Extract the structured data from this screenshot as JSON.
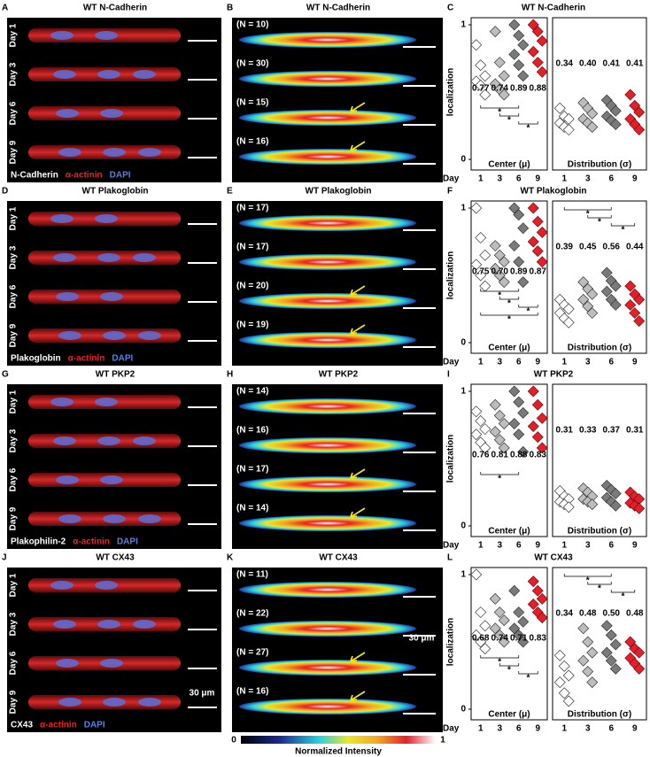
{
  "common": {
    "day_word": "Day",
    "days": [
      "1",
      "3",
      "6",
      "9"
    ],
    "ylabel": "localization",
    "yticks": [
      0,
      1
    ],
    "ylim": [
      0,
      1
    ],
    "center_label": "Center (μ)",
    "distribution_label": "Distribution (σ)",
    "day_colors": [
      "#ffffff",
      "#bdbdbd",
      "#7a7a7a",
      "#e0202a"
    ],
    "colorbar": {
      "min": "0",
      "max": "1",
      "label": "Normalized Intensity"
    }
  },
  "panels": [
    {
      "image": {
        "letter": "A",
        "title": "WT N-Cadherin",
        "days": [
          "Day 1",
          "Day 3",
          "Day 6",
          "Day 9"
        ],
        "stains": [
          "N-Cadherin",
          "α-actinin",
          "DAPI"
        ]
      },
      "heatmap": {
        "letter": "B",
        "title": "WT N-Cadherin",
        "counts": [
          "(N = 10)",
          "(N = 30)",
          "(N = 15)",
          "(N = 16)"
        ]
      },
      "plot": {
        "letter": "C",
        "title": "WT N-Cadherin",
        "center_labels": [
          "0.77",
          "0.74",
          "0.89",
          "0.88"
        ],
        "distribution_labels": [
          "0.34",
          "0.40",
          "0.41",
          "0.41"
        ],
        "center_points": [
          [
            0.85,
            0.7,
            0.62,
            0.58,
            0.55,
            0.48
          ],
          [
            0.95,
            0.72,
            0.62,
            0.56,
            0.52,
            0.48
          ],
          [
            1,
            0.92,
            0.85,
            0.78,
            0.7,
            0.62
          ],
          [
            1,
            0.95,
            0.88,
            0.8,
            0.72,
            0.65
          ]
        ],
        "distribution_points": [
          [
            0.38,
            0.32,
            0.3,
            0.27,
            0.24,
            0.22
          ],
          [
            0.42,
            0.38,
            0.34,
            0.3,
            0.27,
            0.24
          ],
          [
            0.44,
            0.4,
            0.36,
            0.32,
            0.29,
            0.26
          ],
          [
            0.48,
            0.4,
            0.35,
            0.3,
            0.26,
            0.22
          ]
        ],
        "center_stars": [
          "*",
          "*",
          "*"
        ],
        "distribution_stars": []
      }
    },
    {
      "image": {
        "letter": "D",
        "title": "WT Plakoglobin",
        "days": [
          "Day 1",
          "Day 3",
          "Day 6",
          "Day 9"
        ],
        "stains": [
          "Plakoglobin",
          "α-actinin",
          "DAPI"
        ]
      },
      "heatmap": {
        "letter": "E",
        "title": "WT Plakoglobin",
        "counts": [
          "(N = 17)",
          "(N = 17)",
          "(N = 20)",
          "(N = 19)"
        ]
      },
      "plot": {
        "letter": "F",
        "title": "WT Plakoglobin",
        "center_labels": [
          "0.75",
          "0.70",
          "0.89",
          "0.87"
        ],
        "distribution_labels": [
          "0.39",
          "0.45",
          "0.56",
          "0.44"
        ],
        "center_points": [
          [
            1,
            0.78,
            0.65,
            0.58,
            0.5,
            0.42
          ],
          [
            0.72,
            0.65,
            0.6,
            0.55,
            0.5,
            0.45
          ],
          [
            1,
            0.95,
            0.85,
            0.72,
            0.6,
            0.45
          ],
          [
            1,
            0.9,
            0.82,
            0.75,
            0.68,
            0.6
          ]
        ],
        "distribution_points": [
          [
            0.32,
            0.28,
            0.25,
            0.22,
            0.18,
            0.15
          ],
          [
            0.45,
            0.4,
            0.36,
            0.32,
            0.27,
            0.22
          ],
          [
            0.52,
            0.46,
            0.42,
            0.38,
            0.32,
            0.28
          ],
          [
            0.42,
            0.36,
            0.32,
            0.28,
            0.22,
            0.16
          ]
        ],
        "center_stars": [
          "*",
          "*",
          "*",
          "*"
        ],
        "distribution_stars": [
          "*",
          "*",
          "*"
        ]
      }
    },
    {
      "image": {
        "letter": "G",
        "title": "WT PKP2",
        "days": [
          "Day 1",
          "Day 3",
          "Day 6",
          "Day 9"
        ],
        "stains": [
          "Plakophilin-2",
          "α-actinin",
          "DAPI"
        ]
      },
      "heatmap": {
        "letter": "H",
        "title": "WT PKP2",
        "counts": [
          "(N = 14)",
          "(N = 16)",
          "(N = 17)",
          "(N = 14)"
        ]
      },
      "plot": {
        "letter": "I",
        "title": "WT PKP2",
        "center_labels": [
          "0.76",
          "0.81",
          "0.88",
          "0.83"
        ],
        "distribution_labels": [
          "0.31",
          "0.33",
          "0.37",
          "0.31"
        ],
        "center_points": [
          [
            0.85,
            0.78,
            0.72,
            0.68,
            0.62,
            0.58
          ],
          [
            0.9,
            0.82,
            0.76,
            0.7,
            0.64,
            0.58
          ],
          [
            1,
            0.92,
            0.84,
            0.76,
            0.68,
            0.55
          ],
          [
            1,
            0.9,
            0.8,
            0.74,
            0.66,
            0.58
          ]
        ],
        "distribution_points": [
          [
            0.26,
            0.22,
            0.2,
            0.18,
            0.16,
            0.14
          ],
          [
            0.28,
            0.25,
            0.22,
            0.2,
            0.18,
            0.16
          ],
          [
            0.3,
            0.27,
            0.24,
            0.21,
            0.18,
            0.15
          ],
          [
            0.25,
            0.22,
            0.2,
            0.17,
            0.15,
            0.13
          ]
        ],
        "center_stars": [
          "*"
        ],
        "distribution_stars": []
      }
    },
    {
      "image": {
        "letter": "J",
        "title": "WT CX43",
        "days": [
          "Day 1",
          "Day 3",
          "Day 6",
          "Day 9"
        ],
        "stains": [
          "CX43",
          "α-actinin",
          "DAPI"
        ],
        "scale_label": "30 μm"
      },
      "heatmap": {
        "letter": "K",
        "title": "WT CX43",
        "counts": [
          "(N = 11)",
          "(N = 22)",
          "(N = 27)",
          "(N = 16)"
        ],
        "scale_label": "30 μm"
      },
      "plot": {
        "letter": "L",
        "title": "WT CX43",
        "center_labels": [
          "0.68",
          "0.74",
          "0.71",
          "0.83"
        ],
        "distribution_labels": [
          "0.34",
          "0.48",
          "0.50",
          "0.48"
        ],
        "center_points": [
          [
            1,
            0.72,
            0.62,
            0.55,
            0.5,
            0.45
          ],
          [
            0.82,
            0.72,
            0.66,
            0.6,
            0.55,
            0.5
          ],
          [
            0.88,
            0.72,
            0.65,
            0.6,
            0.55,
            0.5
          ],
          [
            0.95,
            0.88,
            0.82,
            0.78,
            0.72,
            0.68
          ]
        ],
        "distribution_points": [
          [
            0.4,
            0.32,
            0.25,
            0.2,
            0.12,
            0.06
          ],
          [
            0.6,
            0.5,
            0.42,
            0.36,
            0.28,
            0.2
          ],
          [
            0.62,
            0.55,
            0.48,
            0.42,
            0.36,
            0.3
          ],
          [
            0.5,
            0.45,
            0.42,
            0.38,
            0.34,
            0.3
          ]
        ],
        "center_stars": [
          "*",
          "*",
          "*"
        ],
        "distribution_stars": [
          "*",
          "*",
          "*"
        ]
      }
    }
  ]
}
